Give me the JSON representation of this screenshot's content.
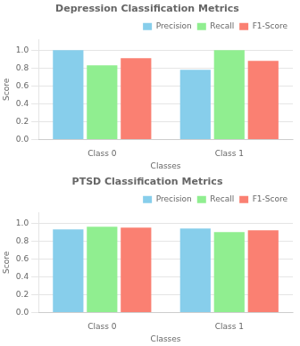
{
  "chart_data": [
    {
      "type": "bar",
      "title": "Depression Classification Metrics",
      "categories": [
        "Class 0",
        "Class 1"
      ],
      "series": [
        {
          "name": "Precision",
          "color": "#87CEEB",
          "values": [
            1.0,
            0.78
          ]
        },
        {
          "name": "Recall",
          "color": "#90EE90",
          "values": [
            0.83,
            1.0
          ]
        },
        {
          "name": "F1-Score",
          "color": "#FA8072",
          "values": [
            0.91,
            0.88
          ]
        }
      ],
      "xlabel": "Classes",
      "ylabel": "Score",
      "ylim": [
        0.0,
        1.12
      ],
      "yticks": [
        {
          "value": 0.0,
          "label": "0.0"
        },
        0.2,
        0.4,
        0.6,
        0.8,
        {
          "value": 1.0,
          "label": "1.0"
        }
      ],
      "grid": true,
      "legend": "upper right"
    },
    {
      "type": "bar",
      "title": "PTSD Classification Metrics",
      "categories": [
        "Class 0",
        "Class 1"
      ],
      "series": [
        {
          "name": "Precision",
          "color": "#87CEEB",
          "values": [
            0.93,
            0.94
          ]
        },
        {
          "name": "Recall",
          "color": "#90EE90",
          "values": [
            0.96,
            0.9
          ]
        },
        {
          "name": "F1-Score",
          "color": "#FA8072",
          "values": [
            0.95,
            0.92
          ]
        }
      ],
      "xlabel": "Classes",
      "ylabel": "Score",
      "ylim": [
        0.0,
        1.12
      ],
      "yticks": [
        {
          "value": 0.0,
          "label": "0.0"
        },
        0.2,
        0.4,
        0.6,
        0.8,
        {
          "value": 1.0,
          "label": "1.0"
        }
      ],
      "grid": true,
      "legend": "upper right"
    }
  ]
}
